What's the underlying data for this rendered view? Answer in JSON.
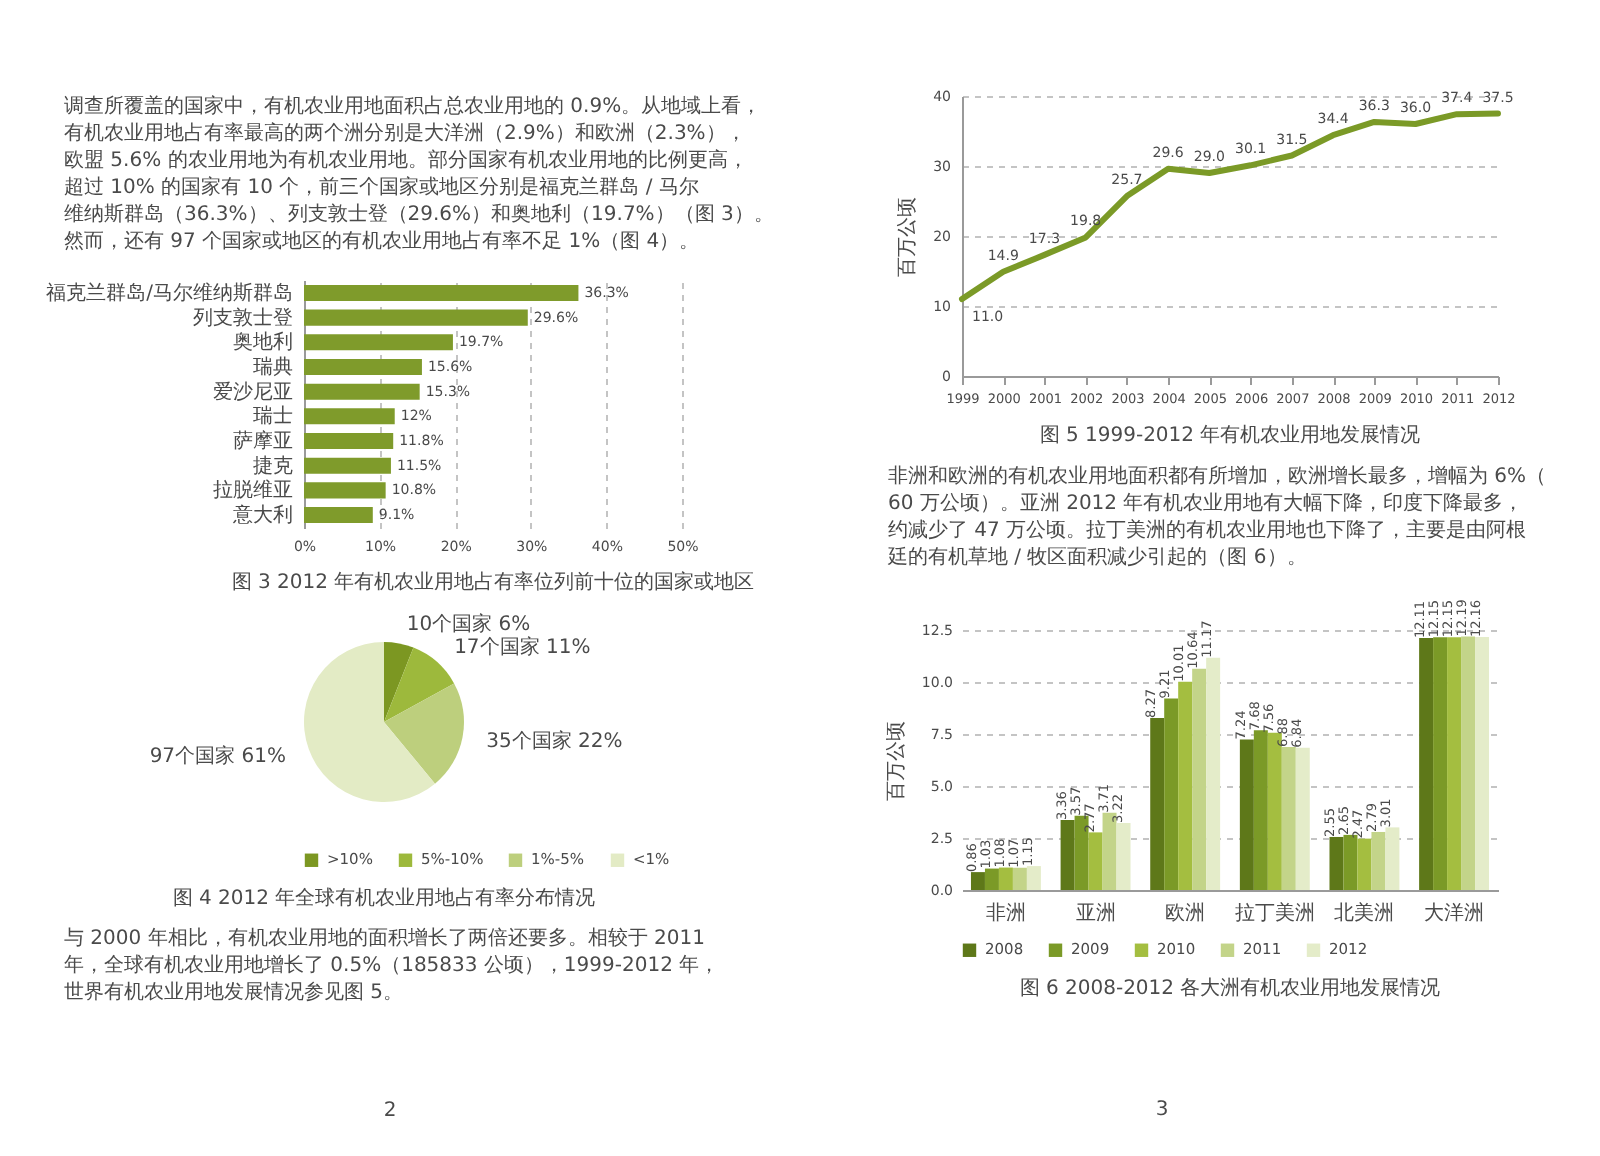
{
  "chart_data": [
    {
      "type": "other",
      "annotations": [
        "调查所覆盖的国家中，有机农业用地面积占总农业用地的 0.9%。从地域上看，有机农业用地占有率最高的两个洲分别是大洋洲（2.9%）和欧洲（2.3%），欧盟 5.6% 的农业用地为有机农业用地。部分国家有机农业用地的比例更高，超过 10% 的国家有 10 个，前三个国家或地区分别是福克兰群岛 / 马尔维纳斯群岛（36.3%）、列支敦士登（29.6%）和奥地利（19.7%）（图 3）。然而，还有 97 个国家或地区的有机农业用地占有率不足 1%（图 4）。"
      ]
    },
    {
      "type": "bar",
      "orientation": "horizontal",
      "title": "图 3 2012 年有机农业用地占有率位列前十位的国家或地区",
      "categories": [
        "福克兰群岛/马尔维纳斯群岛",
        "列支敦士登",
        "奥地利",
        "瑞典",
        "爱沙尼亚",
        "瑞士",
        "萨摩亚",
        "捷克",
        "拉脱维亚",
        "意大利"
      ],
      "values": [
        36.3,
        29.6,
        19.7,
        15.6,
        15.3,
        12,
        11.8,
        11.5,
        10.8,
        9.1
      ],
      "value_labels": [
        "36.3%",
        "29.6%",
        "19.7%",
        "15.6%",
        "15.3%",
        "12%",
        "11.8%",
        "11.5%",
        "10.8%",
        "9.1%"
      ],
      "color": "#7f9b2b",
      "xlim": [
        0,
        50
      ],
      "xticks": [
        {
          "value": 0,
          "label": "0%"
        },
        {
          "value": 10,
          "label": "10%"
        },
        {
          "value": 20,
          "label": "20%"
        },
        {
          "value": 30,
          "label": "30%"
        },
        {
          "value": 40,
          "label": "40%"
        },
        {
          "value": 50,
          "label": "50%"
        }
      ],
      "grid": "x"
    },
    {
      "type": "pie",
      "title": "图 4 2012 年全球有机农业用地占有率分布情况",
      "categories": [
        ">10%",
        "5%-10%",
        "1%-5%",
        "<1%"
      ],
      "values": [
        6,
        11,
        22,
        61
      ],
      "value_labels": [
        "10个国家 6%",
        "17个国家 11%",
        "35个国家 22%",
        "97个国家 61%"
      ],
      "colors": [
        "#7c9722",
        "#9db93c",
        "#bdcf7d",
        "#e3ebc5"
      ],
      "legend": "bottom"
    },
    {
      "type": "other",
      "annotations": [
        "与 2000 年相比，有机农业用地的面积增长了两倍还要多。相较于 2011 年，全球有机农业用地增长了 0.5%（185833 公顷），1999-2012 年，世界有机农业用地发展情况参见图 5。"
      ]
    },
    {
      "type": "other",
      "annotations": [
        "2"
      ]
    },
    {
      "type": "line",
      "title": "图 5 1999-2012 年有机农业用地发展情况",
      "ylabel": "百万公顷",
      "x": [
        1999,
        2000,
        2001,
        2002,
        2003,
        2004,
        2005,
        2006,
        2007,
        2008,
        2009,
        2010,
        2011,
        2012
      ],
      "values": [
        11.0,
        14.9,
        17.3,
        19.8,
        25.7,
        29.6,
        29.0,
        30.1,
        31.5,
        34.4,
        36.3,
        36.0,
        37.4,
        37.5
      ],
      "value_labels": [
        "11.0",
        "14.9",
        "17.3",
        "19.8",
        "25.7",
        "29.6",
        "29.0",
        "30.1",
        "31.5",
        "34.4",
        "36.3",
        "36.0",
        "37.4",
        "37.5"
      ],
      "color": "#7b9a27",
      "xlim": [
        1999,
        2012
      ],
      "xticks": [
        1999,
        2000,
        2001,
        2002,
        2003,
        2004,
        2005,
        2006,
        2007,
        2008,
        2009,
        2010,
        2011,
        2012
      ],
      "ylim": [
        0,
        40
      ],
      "yticks": [
        0,
        10,
        20,
        30,
        40
      ],
      "grid": "y"
    },
    {
      "type": "other",
      "annotations": [
        "非洲和欧洲的有机农业用地面积都有所增加，欧洲增长最多，增幅为 6%（60 万公顷）。亚洲 2012 年有机农业用地有大幅下降，印度下降最多，约减少了 47 万公顷。拉丁美洲的有机农业用地也下降了，主要是由阿根廷的有机草地 / 牧区面积减少引起的（图 6）。"
      ]
    },
    {
      "type": "bar",
      "title": "图 6 2008-2012 各大洲有机农业用地发展情况",
      "ylabel": "百万公顷",
      "categories": [
        "非洲",
        "亚洲",
        "欧洲",
        "拉丁美洲",
        "北美洲",
        "大洋洲"
      ],
      "series": [
        {
          "name": "2008",
          "color": "#5e7819",
          "values": [
            0.86,
            3.36,
            8.27,
            7.24,
            2.55,
            12.11
          ]
        },
        {
          "name": "2009",
          "color": "#7b9a27",
          "values": [
            1.03,
            3.57,
            9.21,
            7.68,
            2.65,
            12.15
          ]
        },
        {
          "name": "2010",
          "color": "#a4be40",
          "values": [
            1.08,
            2.77,
            10.01,
            7.56,
            2.47,
            12.15
          ]
        },
        {
          "name": "2011",
          "color": "#c3d489",
          "values": [
            1.07,
            3.71,
            10.64,
            6.88,
            2.79,
            12.19
          ]
        },
        {
          "name": "2012",
          "color": "#e4ecc9",
          "values": [
            1.15,
            3.22,
            11.17,
            6.84,
            3.01,
            12.16
          ]
        }
      ],
      "ylim": [
        0,
        12.5
      ],
      "yticks": [
        {
          "value": 0,
          "label": "0.0"
        },
        2.5,
        {
          "value": 5,
          "label": "5.0"
        },
        7.5,
        {
          "value": 10,
          "label": "10.0"
        },
        12.5
      ],
      "grid": "y",
      "legend": "bottom",
      "data_labels": true
    },
    {
      "type": "other",
      "annotations": [
        "3"
      ]
    }
  ]
}
